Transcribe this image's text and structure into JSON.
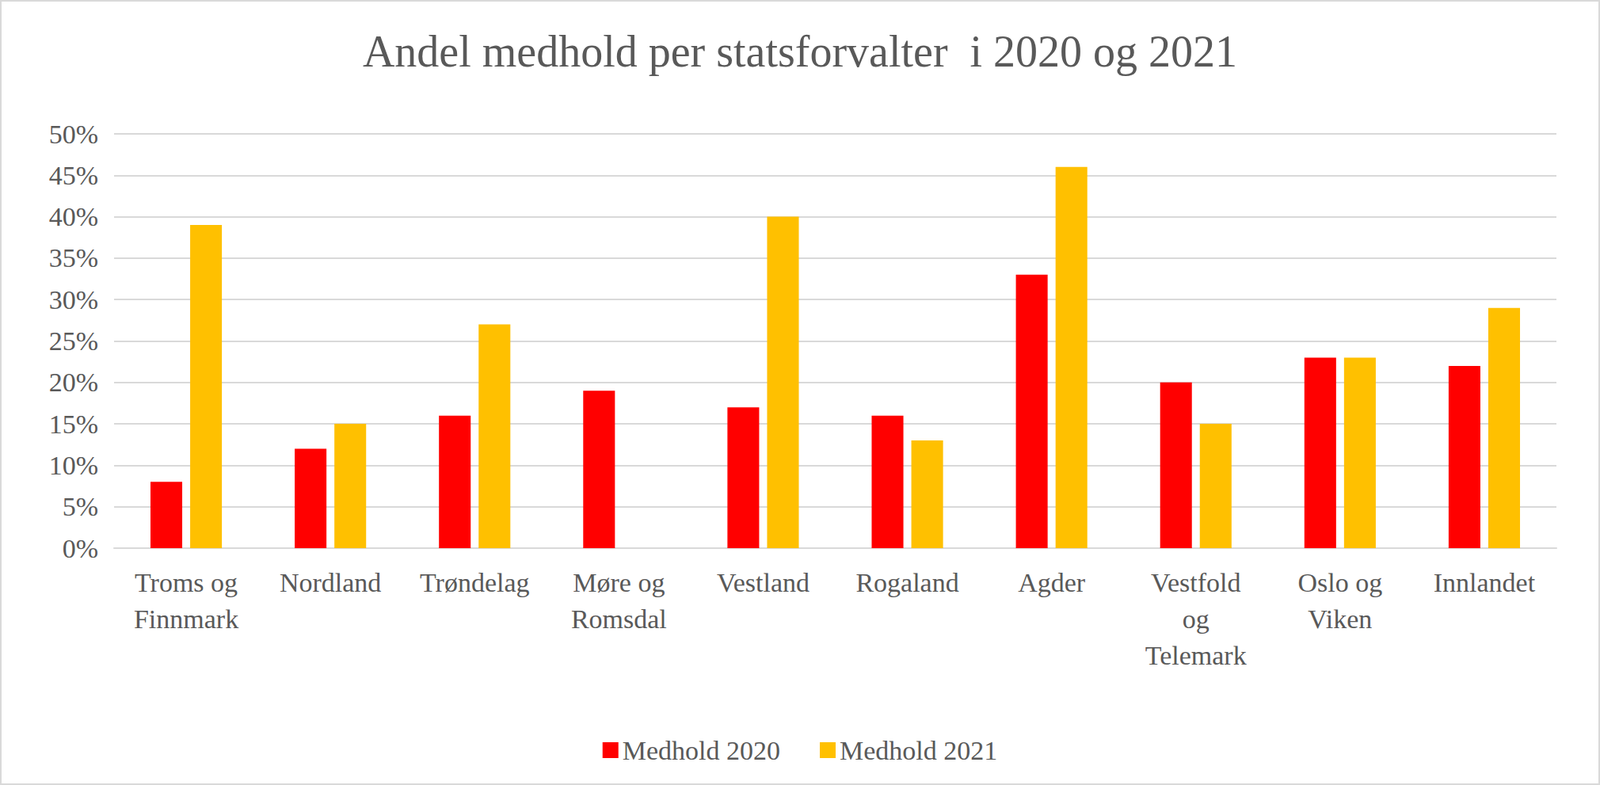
{
  "chart_data": {
    "type": "bar",
    "title": "Andel medhold per statsforvalter  i 2020 og 2021",
    "categories": [
      "Troms og\nFinnmark",
      "Nordland",
      "Trøndelag",
      "Møre og\nRomsdal",
      "Vestland",
      "Rogaland",
      "Agder",
      "Vestfold\nog\nTelemark",
      "Oslo og\nViken",
      "Innlandet"
    ],
    "series": [
      {
        "name": "Medhold 2020",
        "color": "#ff0000",
        "values": [
          8,
          12,
          16,
          19,
          17,
          16,
          33,
          20,
          23,
          22
        ]
      },
      {
        "name": "Medhold 2021",
        "color": "#ffc000",
        "values": [
          39,
          15,
          27,
          null,
          40,
          13,
          46,
          15,
          23,
          29
        ]
      }
    ],
    "ylim": [
      0,
      50
    ],
    "yticks": [
      {
        "value": 0,
        "label": "0%"
      },
      {
        "value": 5,
        "label": "5%"
      },
      {
        "value": 10,
        "label": "10%"
      },
      {
        "value": 15,
        "label": "15%"
      },
      {
        "value": 20,
        "label": "20%"
      },
      {
        "value": 25,
        "label": "25%"
      },
      {
        "value": 30,
        "label": "30%"
      },
      {
        "value": 35,
        "label": "35%"
      },
      {
        "value": 40,
        "label": "40%"
      },
      {
        "value": 45,
        "label": "45%"
      },
      {
        "value": 50,
        "label": "50%"
      }
    ],
    "grid": true,
    "legend": "bottom"
  }
}
